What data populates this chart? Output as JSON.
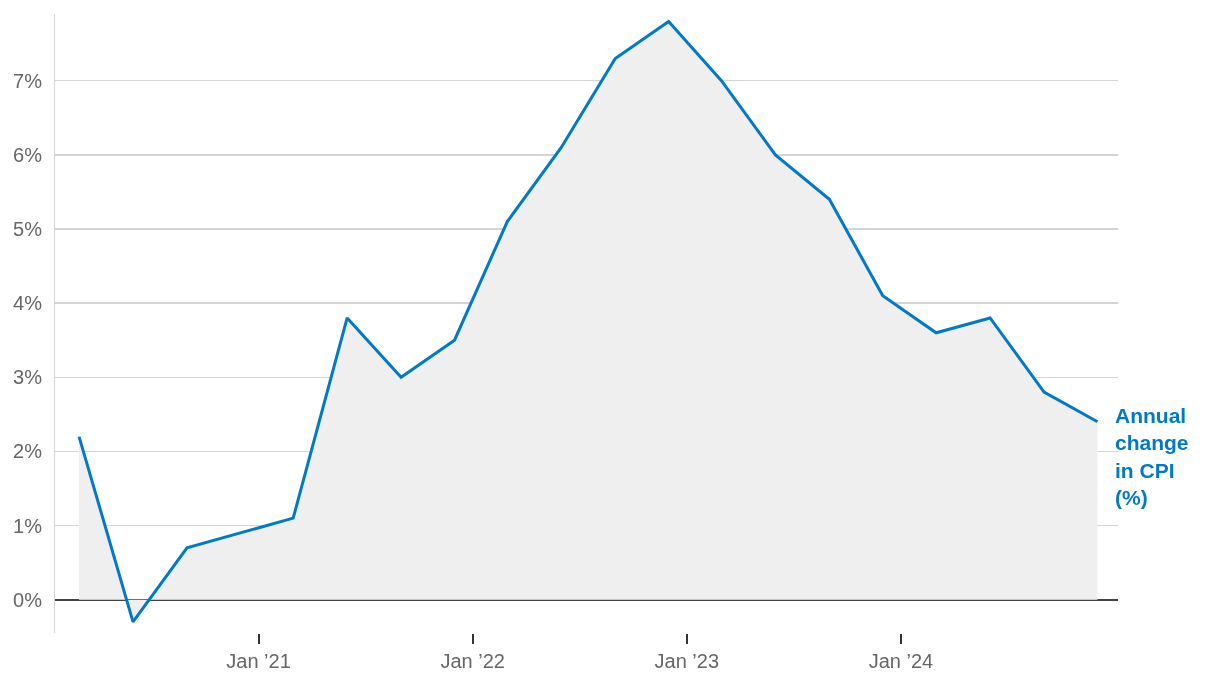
{
  "chart_data": {
    "type": "area",
    "x": [
      "2020-03",
      "2020-06",
      "2020-09",
      "2020-12",
      "2021-03",
      "2021-06",
      "2021-09",
      "2021-12",
      "2022-03",
      "2022-06",
      "2022-09",
      "2022-12",
      "2023-03",
      "2023-06",
      "2023-09",
      "2023-12",
      "2024-03",
      "2024-06",
      "2024-09",
      "2024-12"
    ],
    "series": [
      {
        "name": "Annual change in CPI (%)",
        "color": "#0079c8",
        "values": [
          2.2,
          -0.3,
          0.7,
          0.9,
          1.1,
          3.8,
          3.0,
          3.5,
          5.1,
          6.1,
          7.3,
          7.8,
          7.0,
          6.0,
          5.4,
          4.1,
          3.6,
          3.8,
          2.8,
          2.4
        ]
      }
    ],
    "xlim": [
      "2020-01-20",
      "2025-01-05"
    ],
    "xticks": [
      {
        "value": "2021-01",
        "label": "Jan ’21"
      },
      {
        "value": "2022-01",
        "label": "Jan ’22"
      },
      {
        "value": "2023-01",
        "label": "Jan ’23"
      },
      {
        "value": "2024-01",
        "label": "Jan ’24"
      }
    ],
    "ylim": [
      -0.45,
      7.9
    ],
    "yticks": [
      {
        "value": 0,
        "label": "0%"
      },
      {
        "value": 1,
        "label": "1%"
      },
      {
        "value": 2,
        "label": "2%"
      },
      {
        "value": 3,
        "label": "3%"
      },
      {
        "value": 4,
        "label": "4%"
      },
      {
        "value": 5,
        "label": "5%"
      },
      {
        "value": 6,
        "label": "6%"
      },
      {
        "value": 7,
        "label": "7%"
      }
    ],
    "grid": "y",
    "legend": false,
    "line_style": "solid",
    "marker": "none"
  }
}
